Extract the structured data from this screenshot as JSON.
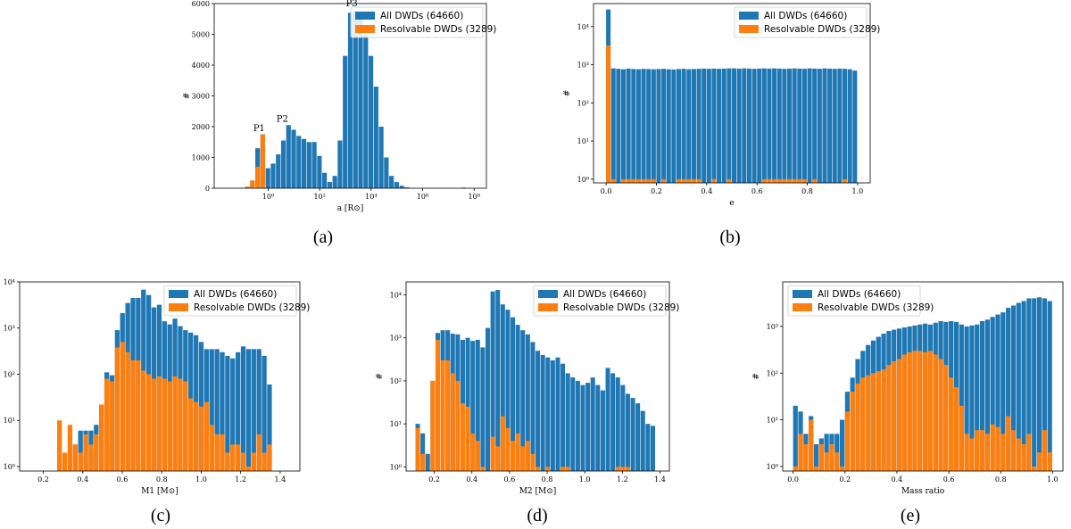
{
  "colors": {
    "all": "#1f77b4",
    "resolvable": "#ff7f0e"
  },
  "legend": {
    "all": "All DWDs (64660)",
    "resolvable": "Resolvable DWDs (3289)"
  },
  "captions": [
    "(a)",
    "(b)",
    "(c)",
    "(d)",
    "(e)"
  ],
  "chart_data": [
    {
      "id": "a",
      "type": "histogram",
      "yscale": "linear",
      "xscale": "log",
      "xlabel": "a [R⊙]",
      "ylabel": "#",
      "xlim": [
        0.008,
        300000000
      ],
      "ylim": [
        0,
        6000
      ],
      "xticks": [
        {
          "v": 1,
          "label": "10⁰"
        },
        {
          "v": 100,
          "label": "10²"
        },
        {
          "v": 10000,
          "label": "10⁴"
        },
        {
          "v": 1000000,
          "label": "10⁶"
        },
        {
          "v": 100000000,
          "label": "10⁸"
        }
      ],
      "yticks": [
        0,
        1000,
        2000,
        3000,
        4000,
        5000,
        6000
      ],
      "legend_position": "top-right",
      "bin_edges_log10": [
        -1.5,
        -1.3,
        -1.1,
        -0.9,
        -0.7,
        -0.5,
        -0.3,
        -0.1,
        0.1,
        0.3,
        0.5,
        0.7,
        0.9,
        1.1,
        1.3,
        1.5,
        1.7,
        1.9,
        2.1,
        2.3,
        2.5,
        2.7,
        2.9,
        3.1,
        3.3,
        3.5,
        3.7,
        3.9,
        4.1,
        4.3,
        4.5,
        4.7,
        4.9,
        5.1,
        5.3,
        5.5,
        5.7,
        5.9,
        6.1,
        6.3,
        6.5,
        6.7,
        6.9,
        7.1,
        7.3,
        7.5,
        7.7,
        7.9,
        8.1
      ],
      "series": [
        {
          "name": "All DWDs (64660)",
          "values": [
            0,
            0,
            10,
            50,
            250,
            1300,
            1750,
            650,
            800,
            1100,
            1550,
            2050,
            1900,
            1700,
            1600,
            1500,
            1500,
            1050,
            500,
            200,
            400,
            1550,
            4300,
            5700,
            5750,
            5500,
            5000,
            4300,
            3300,
            2000,
            1000,
            400,
            200,
            80,
            30,
            10,
            0,
            0,
            0,
            0,
            0,
            0,
            0,
            0,
            0,
            20,
            0,
            0
          ]
        },
        {
          "name": "Resolvable DWDs (3289)",
          "values": [
            0,
            0,
            10,
            50,
            250,
            700,
            1750,
            0,
            0,
            0,
            0,
            0,
            0,
            0,
            0,
            0,
            0,
            0,
            0,
            0,
            0,
            0,
            0,
            0,
            0,
            0,
            0,
            0,
            0,
            0,
            0,
            0,
            0,
            0,
            0,
            0,
            0,
            0,
            0,
            0,
            0,
            0,
            0,
            0,
            0,
            0,
            0,
            0
          ]
        }
      ],
      "annotations": [
        {
          "text": "P1",
          "x_log10": -0.35,
          "y": 1800
        },
        {
          "text": "P2",
          "x_log10": 0.55,
          "y": 2100
        },
        {
          "text": "P3",
          "x_log10": 3.25,
          "y": 5850
        }
      ]
    },
    {
      "id": "b",
      "type": "histogram",
      "yscale": "log",
      "xlabel": "e",
      "ylabel": "#",
      "xlim": [
        -0.05,
        1.05
      ],
      "ylim": [
        0.8,
        40000
      ],
      "xticks": [
        0.0,
        0.2,
        0.4,
        0.6,
        0.8,
        1.0
      ],
      "yticks": [
        {
          "v": 1,
          "label": "10⁰"
        },
        {
          "v": 10,
          "label": "10¹"
        },
        {
          "v": 100,
          "label": "10²"
        },
        {
          "v": 1000,
          "label": "10³"
        },
        {
          "v": 10000,
          "label": "10⁴"
        }
      ],
      "legend_position": "top-right",
      "bin_start": 0.0,
      "bin_width": 0.02,
      "series": [
        {
          "name": "All DWDs (64660)",
          "values": [
            28000,
            800,
            780,
            760,
            790,
            770,
            760,
            780,
            770,
            760,
            770,
            780,
            760,
            750,
            770,
            780,
            760,
            770,
            780,
            790,
            780,
            790,
            780,
            790,
            800,
            800,
            790,
            800,
            790,
            780,
            790,
            800,
            790,
            800,
            790,
            780,
            790,
            800,
            790,
            780,
            800,
            790,
            780,
            800,
            790,
            780,
            790,
            780,
            760,
            700
          ]
        },
        {
          "name": "Resolvable DWDs (3289)",
          "values": [
            3200,
            1,
            0,
            1,
            1,
            1,
            1,
            1,
            1,
            1,
            0,
            1,
            0,
            0,
            1,
            1,
            1,
            1,
            1,
            0,
            0,
            1,
            0,
            0,
            1,
            0,
            0,
            0,
            0,
            0,
            0,
            1,
            1,
            1,
            1,
            1,
            1,
            1,
            1,
            1,
            0,
            1,
            0,
            0,
            0,
            0,
            0,
            1,
            0,
            0
          ]
        }
      ]
    },
    {
      "id": "c",
      "type": "histogram",
      "yscale": "log",
      "xlabel": "M1 [M⊙]",
      "ylabel": "#",
      "xlim": [
        0.08,
        1.5
      ],
      "ylim": [
        0.8,
        10000
      ],
      "xticks": [
        0.2,
        0.4,
        0.6,
        0.8,
        1.0,
        1.2,
        1.4
      ],
      "yticks": [
        {
          "v": 1,
          "label": "10⁰"
        },
        {
          "v": 10,
          "label": "10¹"
        },
        {
          "v": 100,
          "label": "10²"
        },
        {
          "v": 1000,
          "label": "10³"
        },
        {
          "v": 10000,
          "label": "10⁴"
        }
      ],
      "legend_position": "top-right",
      "bin_start": 0.27,
      "bin_width": 0.0266,
      "series": [
        {
          "name": "All DWDs (64660)",
          "values": [
            0,
            0,
            0,
            3,
            6,
            6,
            6,
            8,
            22,
            110,
            95,
            900,
            2100,
            3500,
            4500,
            4500,
            6800,
            5200,
            2800,
            3200,
            1400,
            1200,
            1600,
            1100,
            900,
            800,
            700,
            500,
            350,
            350,
            350,
            300,
            250,
            220,
            300,
            400,
            350,
            350,
            350,
            250,
            60
          ]
        },
        {
          "name": "Resolvable DWDs (3289)",
          "values": [
            10,
            2,
            8,
            3,
            2,
            5,
            3,
            5,
            22,
            80,
            70,
            380,
            500,
            300,
            200,
            200,
            120,
            100,
            80,
            90,
            80,
            70,
            90,
            80,
            70,
            30,
            25,
            20,
            25,
            8,
            5,
            5,
            2,
            3,
            3,
            2,
            1,
            2,
            5,
            2,
            3
          ]
        }
      ]
    },
    {
      "id": "d",
      "type": "histogram",
      "yscale": "log",
      "xlabel": "M2 [M⊙]",
      "ylabel": "#",
      "xlim": [
        0.05,
        1.45
      ],
      "ylim": [
        0.8,
        20000
      ],
      "xticks": [
        0.2,
        0.4,
        0.6,
        0.8,
        1.0,
        1.2,
        1.4
      ],
      "yticks": [
        {
          "v": 1,
          "label": "10⁰"
        },
        {
          "v": 10,
          "label": "10¹"
        },
        {
          "v": 100,
          "label": "10²"
        },
        {
          "v": 1000,
          "label": "10³"
        },
        {
          "v": 10000,
          "label": "10⁴"
        }
      ],
      "legend_position": "top-right",
      "bin_start": 0.1,
      "bin_width": 0.0266,
      "series": [
        {
          "name": "All DWDs (64660)",
          "values": [
            10,
            6,
            2,
            100,
            1300,
            1500,
            1500,
            1250,
            1200,
            900,
            1000,
            850,
            900,
            600,
            1700,
            12000,
            13000,
            6000,
            4500,
            3000,
            2000,
            1500,
            1200,
            800,
            500,
            400,
            350,
            300,
            350,
            250,
            150,
            120,
            100,
            80,
            90,
            120,
            80,
            60,
            200,
            150,
            120,
            80,
            50,
            40,
            30,
            20,
            10,
            9
          ]
        },
        {
          "name": "Resolvable DWDs (3289)",
          "values": [
            8,
            2,
            0,
            100,
            900,
            300,
            300,
            150,
            100,
            30,
            25,
            6,
            4,
            1,
            0,
            5,
            3,
            15,
            8,
            4,
            6,
            3,
            4,
            2,
            1,
            0,
            1,
            0,
            0,
            1,
            1,
            0,
            0,
            0,
            0,
            0,
            0,
            0,
            0,
            0,
            1,
            1,
            1,
            0,
            0,
            0,
            0,
            0
          ]
        }
      ]
    },
    {
      "id": "e",
      "type": "histogram",
      "yscale": "log",
      "xlabel": "Mass ratio",
      "ylabel": "#",
      "xlim": [
        -0.04,
        1.04
      ],
      "ylim": [
        0.8,
        9000
      ],
      "xticks": [
        0.0,
        0.2,
        0.4,
        0.6,
        0.8,
        1.0
      ],
      "yticks": [
        {
          "v": 1,
          "label": "10⁰"
        },
        {
          "v": 10,
          "label": "10¹"
        },
        {
          "v": 100,
          "label": "10²"
        },
        {
          "v": 1000,
          "label": "10³"
        }
      ],
      "legend_position": "top-left",
      "bin_start": 0.0,
      "bin_width": 0.02,
      "series": [
        {
          "name": "All DWDs (64660)",
          "values": [
            20,
            15,
            5,
            12,
            3,
            4,
            5,
            5,
            5,
            10,
            40,
            80,
            200,
            300,
            400,
            500,
            600,
            700,
            800,
            850,
            900,
            950,
            1000,
            1050,
            1100,
            1150,
            1100,
            1200,
            1300,
            1250,
            1300,
            1250,
            1100,
            1000,
            1050,
            1100,
            1300,
            1400,
            1600,
            1800,
            2000,
            2500,
            2800,
            3200,
            3500,
            4000,
            4000,
            4200,
            4000,
            3500
          ]
        },
        {
          "name": "Resolvable DWDs (3289)",
          "values": [
            1,
            5,
            3,
            10,
            1,
            3,
            2,
            3,
            2,
            1,
            15,
            40,
            60,
            80,
            90,
            100,
            110,
            120,
            150,
            180,
            200,
            250,
            280,
            300,
            300,
            280,
            300,
            250,
            200,
            150,
            80,
            50,
            20,
            5,
            4,
            6,
            6,
            5,
            8,
            7,
            5,
            12,
            6,
            4,
            3,
            5,
            1,
            2,
            6,
            2
          ]
        }
      ]
    }
  ]
}
